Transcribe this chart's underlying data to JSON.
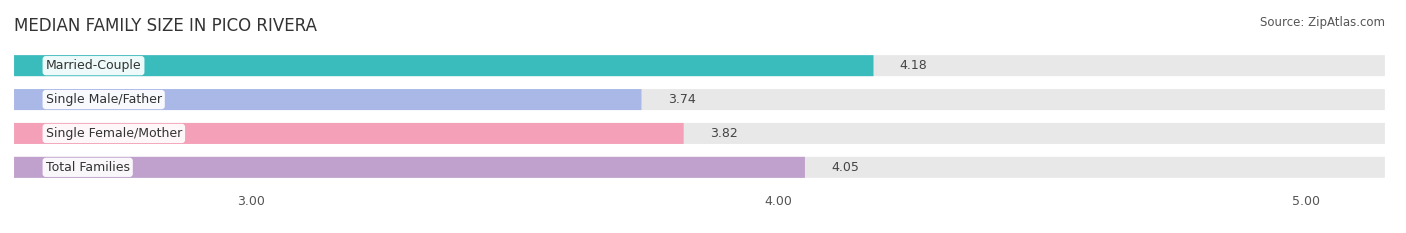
{
  "title": "MEDIAN FAMILY SIZE IN PICO RIVERA",
  "source": "Source: ZipAtlas.com",
  "categories": [
    "Married-Couple",
    "Single Male/Father",
    "Single Female/Mother",
    "Total Families"
  ],
  "values": [
    4.18,
    3.74,
    3.82,
    4.05
  ],
  "bar_colors": [
    "#3abcbc",
    "#aab8e8",
    "#f4a0b8",
    "#c0a0cc"
  ],
  "background_color": "#ffffff",
  "bar_bg_color": "#e8e8e8",
  "xlim_left": 2.55,
  "xlim_right": 5.15,
  "xticks": [
    3.0,
    4.0,
    5.0
  ],
  "xtick_labels": [
    "3.00",
    "4.00",
    "5.00"
  ],
  "bar_height": 0.62,
  "title_fontsize": 12,
  "label_fontsize": 9,
  "value_fontsize": 9,
  "tick_fontsize": 9,
  "source_fontsize": 8.5
}
